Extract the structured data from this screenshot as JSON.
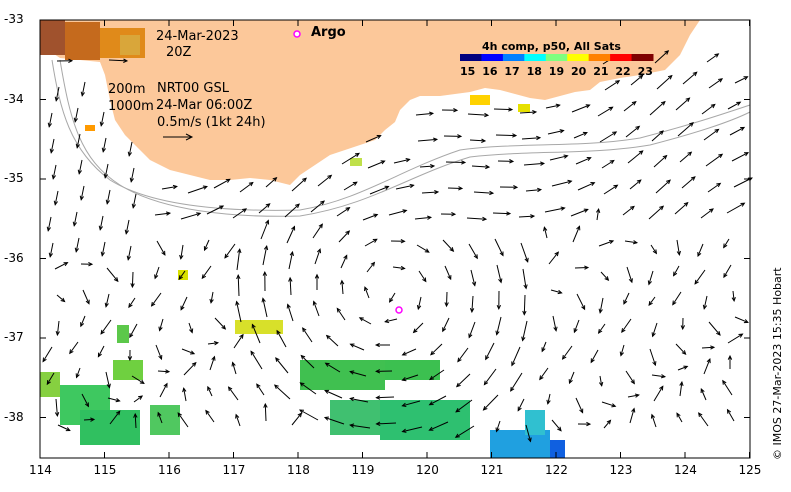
{
  "header": {
    "date": "24-Mar-2023",
    "time": "20Z",
    "depth_line1": "200m",
    "depth_line2": "1000m",
    "product": "NRT00 GSL",
    "product_time": "24-Mar 06:00Z",
    "scale_label": "0.5m/s (1kt 24h)",
    "argo_label": "Argo"
  },
  "colorbar": {
    "title": "4h comp, p50, All Sats",
    "ticks": [
      "15",
      "16",
      "17",
      "18",
      "19",
      "20",
      "21",
      "22",
      "23"
    ],
    "colors": [
      "#00007f",
      "#0000ff",
      "#0080ff",
      "#00ffff",
      "#7fff7f",
      "#ffff00",
      "#ff8000",
      "#ff0000",
      "#7f0000"
    ]
  },
  "axes": {
    "lon_ticks": [
      "114",
      "115",
      "116",
      "117",
      "118",
      "119",
      "120",
      "121",
      "122",
      "123",
      "124",
      "125"
    ],
    "lat_ticks": [
      "-33",
      "-34",
      "-35",
      "-36",
      "-37",
      "-38"
    ]
  },
  "credit": "© IMOS 27-Mar-2023 15:35 Hobart",
  "colors": {
    "land": "#fcc89a",
    "argo": "#ff00ff"
  }
}
